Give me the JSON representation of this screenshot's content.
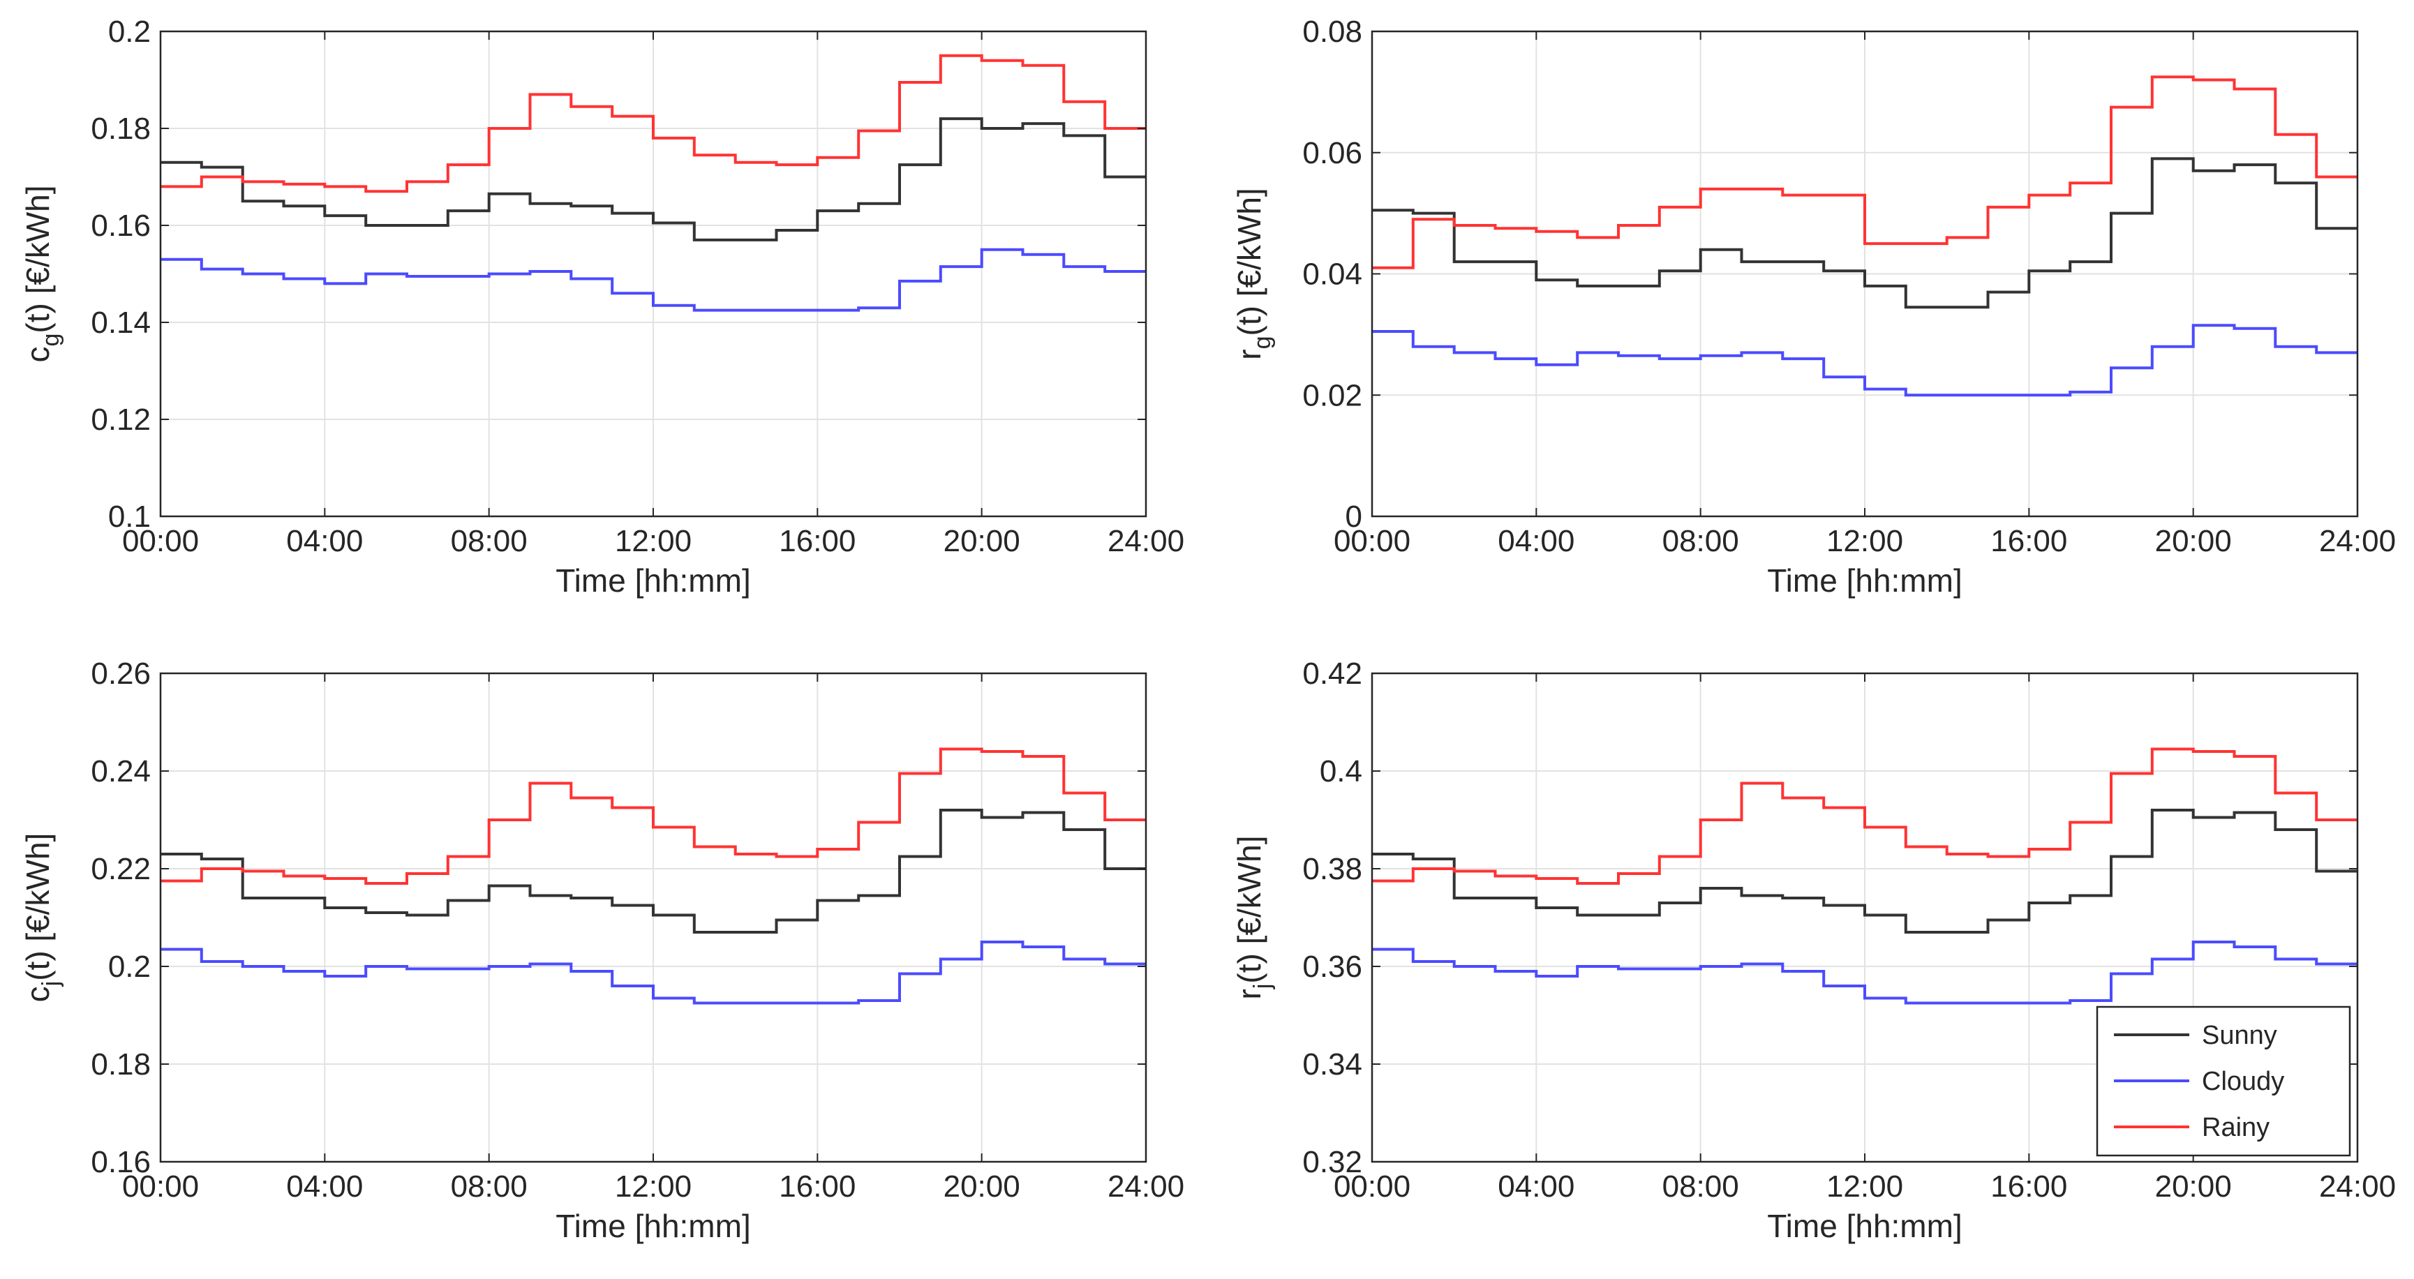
{
  "legend_labels": [
    "Sunny",
    "Cloudy",
    "Rainy"
  ],
  "colors": {
    "Sunny": "#333333",
    "Cloudy": "#4b4bff",
    "Rainy": "#ff3333",
    "grid": "#e2e2e2",
    "axis": "#262626"
  },
  "chart_data": [
    {
      "id": "cg",
      "type": "line",
      "step": true,
      "title": "",
      "ylabel_main": "c",
      "ylabel_sub": "g",
      "ylabel_rest": "(t) [€/kWh]",
      "xlabel": "Time [hh:mm]",
      "xlim": [
        0,
        24
      ],
      "ylim": [
        0.1,
        0.2
      ],
      "x_ticks": [
        0,
        4,
        8,
        12,
        16,
        20,
        24
      ],
      "x_tick_labels": [
        "00:00",
        "04:00",
        "08:00",
        "12:00",
        "16:00",
        "20:00",
        "24:00"
      ],
      "y_ticks": [
        0.1,
        0.12,
        0.14,
        0.16,
        0.18,
        0.2
      ],
      "y_tick_labels": [
        "0.1",
        "0.12",
        "0.14",
        "0.16",
        "0.18",
        "0.2"
      ],
      "grid": true,
      "series": [
        {
          "name": "Sunny",
          "values": [
            0.173,
            0.172,
            0.165,
            0.164,
            0.162,
            0.16,
            0.16,
            0.163,
            0.1665,
            0.1645,
            0.164,
            0.1625,
            0.1605,
            0.157,
            0.157,
            0.159,
            0.163,
            0.1645,
            0.1725,
            0.182,
            0.18,
            0.181,
            0.1785,
            0.17
          ]
        },
        {
          "name": "Cloudy",
          "values": [
            0.153,
            0.151,
            0.15,
            0.149,
            0.148,
            0.15,
            0.1495,
            0.1495,
            0.15,
            0.1505,
            0.149,
            0.146,
            0.1435,
            0.1425,
            0.1425,
            0.1425,
            0.1425,
            0.143,
            0.1485,
            0.1515,
            0.155,
            0.154,
            0.1515,
            0.1505
          ]
        },
        {
          "name": "Rainy",
          "values": [
            0.168,
            0.17,
            0.169,
            0.1685,
            0.168,
            0.167,
            0.169,
            0.1725,
            0.18,
            0.187,
            0.1845,
            0.1825,
            0.178,
            0.1745,
            0.173,
            0.1725,
            0.174,
            0.1795,
            0.1895,
            0.195,
            0.194,
            0.193,
            0.1855,
            0.18
          ]
        }
      ]
    },
    {
      "id": "rg",
      "type": "line",
      "step": true,
      "title": "",
      "ylabel_main": "r",
      "ylabel_sub": "g",
      "ylabel_rest": "(t) [€/kWh]",
      "xlabel": "Time [hh:mm]",
      "xlim": [
        0,
        24
      ],
      "ylim": [
        0,
        0.08
      ],
      "x_ticks": [
        0,
        4,
        8,
        12,
        16,
        20,
        24
      ],
      "x_tick_labels": [
        "00:00",
        "04:00",
        "08:00",
        "12:00",
        "16:00",
        "20:00",
        "24:00"
      ],
      "y_ticks": [
        0,
        0.02,
        0.04,
        0.06,
        0.08
      ],
      "y_tick_labels": [
        "0",
        "0.02",
        "0.04",
        "0.06",
        "0.08"
      ],
      "grid": true,
      "series": [
        {
          "name": "Sunny",
          "values": [
            0.0505,
            0.05,
            0.042,
            0.042,
            0.039,
            0.038,
            0.038,
            0.0405,
            0.044,
            0.042,
            0.042,
            0.0405,
            0.038,
            0.0345,
            0.0345,
            0.037,
            0.0405,
            0.042,
            0.05,
            0.059,
            0.057,
            0.058,
            0.055,
            0.0475
          ]
        },
        {
          "name": "Cloudy",
          "values": [
            0.0305,
            0.028,
            0.027,
            0.026,
            0.025,
            0.027,
            0.0265,
            0.026,
            0.0265,
            0.027,
            0.026,
            0.023,
            0.021,
            0.02,
            0.02,
            0.02,
            0.02,
            0.0205,
            0.0245,
            0.028,
            0.0315,
            0.031,
            0.028,
            0.027
          ]
        },
        {
          "name": "Rainy",
          "values": [
            0.041,
            0.049,
            0.048,
            0.0475,
            0.047,
            0.046,
            0.048,
            0.051,
            0.054,
            0.054,
            0.053,
            0.053,
            0.045,
            0.045,
            0.046,
            0.051,
            0.053,
            0.055,
            0.0675,
            0.0725,
            0.072,
            0.0705,
            0.063,
            0.056
          ]
        }
      ]
    },
    {
      "id": "cj",
      "type": "line",
      "step": true,
      "title": "",
      "ylabel_main": "c",
      "ylabel_sub": "j",
      "ylabel_rest": "(t) [€/kWh]",
      "xlabel": "Time [hh:mm]",
      "xlim": [
        0,
        24
      ],
      "ylim": [
        0.16,
        0.26
      ],
      "x_ticks": [
        0,
        4,
        8,
        12,
        16,
        20,
        24
      ],
      "x_tick_labels": [
        "00:00",
        "04:00",
        "08:00",
        "12:00",
        "16:00",
        "20:00",
        "24:00"
      ],
      "y_ticks": [
        0.16,
        0.18,
        0.2,
        0.22,
        0.24,
        0.26
      ],
      "y_tick_labels": [
        "0.16",
        "0.18",
        "0.2",
        "0.22",
        "0.24",
        "0.26"
      ],
      "grid": true,
      "series": [
        {
          "name": "Sunny",
          "values": [
            0.223,
            0.222,
            0.214,
            0.214,
            0.212,
            0.211,
            0.2105,
            0.2135,
            0.2165,
            0.2145,
            0.214,
            0.2125,
            0.2105,
            0.207,
            0.207,
            0.2095,
            0.2135,
            0.2145,
            0.2225,
            0.232,
            0.2305,
            0.2315,
            0.228,
            0.22
          ]
        },
        {
          "name": "Cloudy",
          "values": [
            0.2035,
            0.201,
            0.2,
            0.199,
            0.198,
            0.2,
            0.1995,
            0.1995,
            0.2,
            0.2005,
            0.199,
            0.196,
            0.1935,
            0.1925,
            0.1925,
            0.1925,
            0.1925,
            0.193,
            0.1985,
            0.2015,
            0.205,
            0.204,
            0.2015,
            0.2005
          ]
        },
        {
          "name": "Rainy",
          "values": [
            0.2175,
            0.22,
            0.2195,
            0.2185,
            0.218,
            0.217,
            0.219,
            0.2225,
            0.23,
            0.2375,
            0.2345,
            0.2325,
            0.2285,
            0.2245,
            0.223,
            0.2225,
            0.224,
            0.2295,
            0.2395,
            0.2445,
            0.244,
            0.243,
            0.2355,
            0.23
          ]
        }
      ]
    },
    {
      "id": "rj",
      "type": "line",
      "step": true,
      "title": "",
      "ylabel_main": "r",
      "ylabel_sub": "j",
      "ylabel_rest": "(t) [€/kWh]",
      "xlabel": "Time [hh:mm]",
      "xlim": [
        0,
        24
      ],
      "ylim": [
        0.32,
        0.42
      ],
      "x_ticks": [
        0,
        4,
        8,
        12,
        16,
        20,
        24
      ],
      "x_tick_labels": [
        "00:00",
        "04:00",
        "08:00",
        "12:00",
        "16:00",
        "20:00",
        "24:00"
      ],
      "y_ticks": [
        0.32,
        0.34,
        0.36,
        0.38,
        0.4,
        0.42
      ],
      "y_tick_labels": [
        "0.32",
        "0.34",
        "0.36",
        "0.38",
        "0.4",
        "0.42"
      ],
      "grid": true,
      "legend": "bottom-right",
      "series": [
        {
          "name": "Sunny",
          "values": [
            0.383,
            0.382,
            0.374,
            0.374,
            0.372,
            0.3705,
            0.3705,
            0.373,
            0.376,
            0.3745,
            0.374,
            0.3725,
            0.3705,
            0.367,
            0.367,
            0.3695,
            0.373,
            0.3745,
            0.3825,
            0.392,
            0.3905,
            0.3915,
            0.388,
            0.3795
          ]
        },
        {
          "name": "Cloudy",
          "values": [
            0.3635,
            0.361,
            0.36,
            0.359,
            0.358,
            0.36,
            0.3595,
            0.3595,
            0.36,
            0.3605,
            0.359,
            0.356,
            0.3535,
            0.3525,
            0.3525,
            0.3525,
            0.3525,
            0.353,
            0.3585,
            0.3615,
            0.365,
            0.364,
            0.3615,
            0.3605
          ]
        },
        {
          "name": "Rainy",
          "values": [
            0.3775,
            0.38,
            0.3795,
            0.3785,
            0.378,
            0.377,
            0.379,
            0.3825,
            0.39,
            0.3975,
            0.3945,
            0.3925,
            0.3885,
            0.3845,
            0.383,
            0.3825,
            0.384,
            0.3895,
            0.3995,
            0.4045,
            0.404,
            0.403,
            0.3955,
            0.39
          ]
        }
      ]
    }
  ]
}
